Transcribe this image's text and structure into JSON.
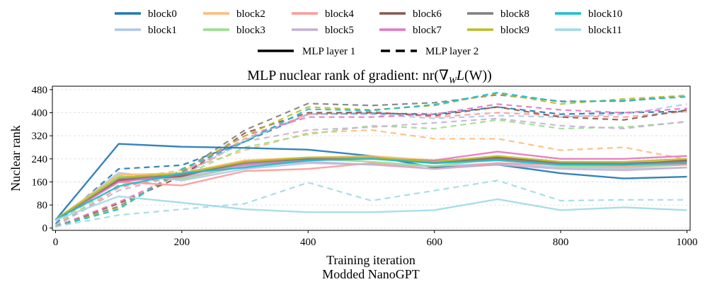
{
  "chart_data": {
    "type": "line",
    "title": "MLP nuclear rank of gradient: nr(∇",
    "title_sub": "W",
    "title_mid": "L",
    "title_end": "(W))",
    "xlabel": "Training iteration",
    "subtitle": "Modded NanoGPT",
    "ylabel": "Nuclear rank",
    "xlim": [
      -5,
      1005
    ],
    "ylim": [
      -8,
      492
    ],
    "x_ticks": [
      0,
      200,
      400,
      600,
      800,
      1000
    ],
    "y_ticks": [
      0,
      80,
      160,
      240,
      320,
      400,
      480
    ],
    "grid": "horizontal dashed",
    "legend_placement": "top-center",
    "x": [
      0,
      100,
      200,
      300,
      400,
      500,
      600,
      700,
      800,
      900,
      1000
    ],
    "linestyle_legend": [
      {
        "label": "MLP layer 1",
        "style": "solid"
      },
      {
        "label": "MLP layer 2",
        "style": "dashed"
      }
    ],
    "series": [
      {
        "name": "block0",
        "color": "#1f77b4",
        "layer1": [
          28,
          292,
          282,
          278,
          272,
          250,
          210,
          220,
          190,
          172,
          178
        ],
        "layer2": [
          15,
          205,
          218,
          300,
          395,
          398,
          395,
          420,
          395,
          400,
          405
        ]
      },
      {
        "name": "block1",
        "color": "#aec7e8",
        "layer1": [
          25,
          192,
          165,
          205,
          225,
          220,
          215,
          225,
          210,
          205,
          210
        ],
        "layer2": [
          10,
          185,
          180,
          305,
          395,
          395,
          380,
          390,
          385,
          395,
          430
        ]
      },
      {
        "name": "block2",
        "color": "#ffbb78",
        "layer1": [
          30,
          185,
          190,
          235,
          245,
          250,
          235,
          240,
          230,
          225,
          235
        ],
        "layer2": [
          8,
          170,
          200,
          270,
          330,
          340,
          310,
          310,
          270,
          280,
          238
        ]
      },
      {
        "name": "block3",
        "color": "#98df8a",
        "layer1": [
          28,
          180,
          170,
          215,
          240,
          230,
          215,
          240,
          215,
          210,
          220
        ],
        "layer2": [
          8,
          150,
          180,
          280,
          325,
          355,
          345,
          375,
          345,
          350,
          368
        ]
      },
      {
        "name": "block4",
        "color": "#ff9896",
        "layer1": [
          30,
          160,
          148,
          198,
          205,
          225,
          205,
          225,
          220,
          215,
          220
        ],
        "layer2": [
          5,
          140,
          185,
          310,
          395,
          405,
          385,
          400,
          390,
          385,
          405
        ]
      },
      {
        "name": "block5",
        "color": "#c5b0d5",
        "layer1": [
          28,
          165,
          175,
          215,
          230,
          220,
          205,
          220,
          205,
          200,
          210
        ],
        "layer2": [
          8,
          130,
          185,
          300,
          340,
          350,
          365,
          380,
          355,
          345,
          370
        ]
      },
      {
        "name": "block6",
        "color": "#8c564b",
        "layer1": [
          28,
          165,
          180,
          230,
          240,
          245,
          225,
          245,
          225,
          220,
          235
        ],
        "layer2": [
          5,
          85,
          180,
          330,
          400,
          400,
          390,
          420,
          385,
          375,
          410
        ]
      },
      {
        "name": "block7",
        "color": "#e377c2",
        "layer1": [
          28,
          160,
          185,
          220,
          235,
          240,
          235,
          265,
          240,
          240,
          250
        ],
        "layer2": [
          5,
          90,
          190,
          320,
          385,
          385,
          395,
          430,
          410,
          400,
          415
        ]
      },
      {
        "name": "block8",
        "color": "#7f7f7f",
        "layer1": [
          28,
          170,
          185,
          225,
          240,
          245,
          230,
          240,
          225,
          225,
          230
        ],
        "layer2": [
          5,
          75,
          195,
          340,
          432,
          425,
          435,
          462,
          440,
          440,
          460
        ]
      },
      {
        "name": "block9",
        "color": "#bcbd22",
        "layer1": [
          30,
          175,
          190,
          230,
          245,
          245,
          230,
          250,
          230,
          230,
          240
        ],
        "layer2": [
          5,
          70,
          200,
          320,
          420,
          410,
          425,
          468,
          430,
          448,
          460
        ]
      },
      {
        "name": "block10",
        "color": "#17becf",
        "layer1": [
          30,
          145,
          190,
          210,
          235,
          240,
          225,
          235,
          220,
          220,
          225
        ],
        "layer2": [
          5,
          65,
          205,
          300,
          412,
          408,
          428,
          470,
          438,
          442,
          455
        ]
      },
      {
        "name": "block11",
        "color": "#9edae5",
        "layer1": [
          28,
          110,
          88,
          65,
          55,
          55,
          62,
          100,
          62,
          72,
          62
        ],
        "layer2": [
          5,
          45,
          65,
          85,
          158,
          95,
          130,
          165,
          95,
          98,
          98
        ]
      }
    ]
  }
}
